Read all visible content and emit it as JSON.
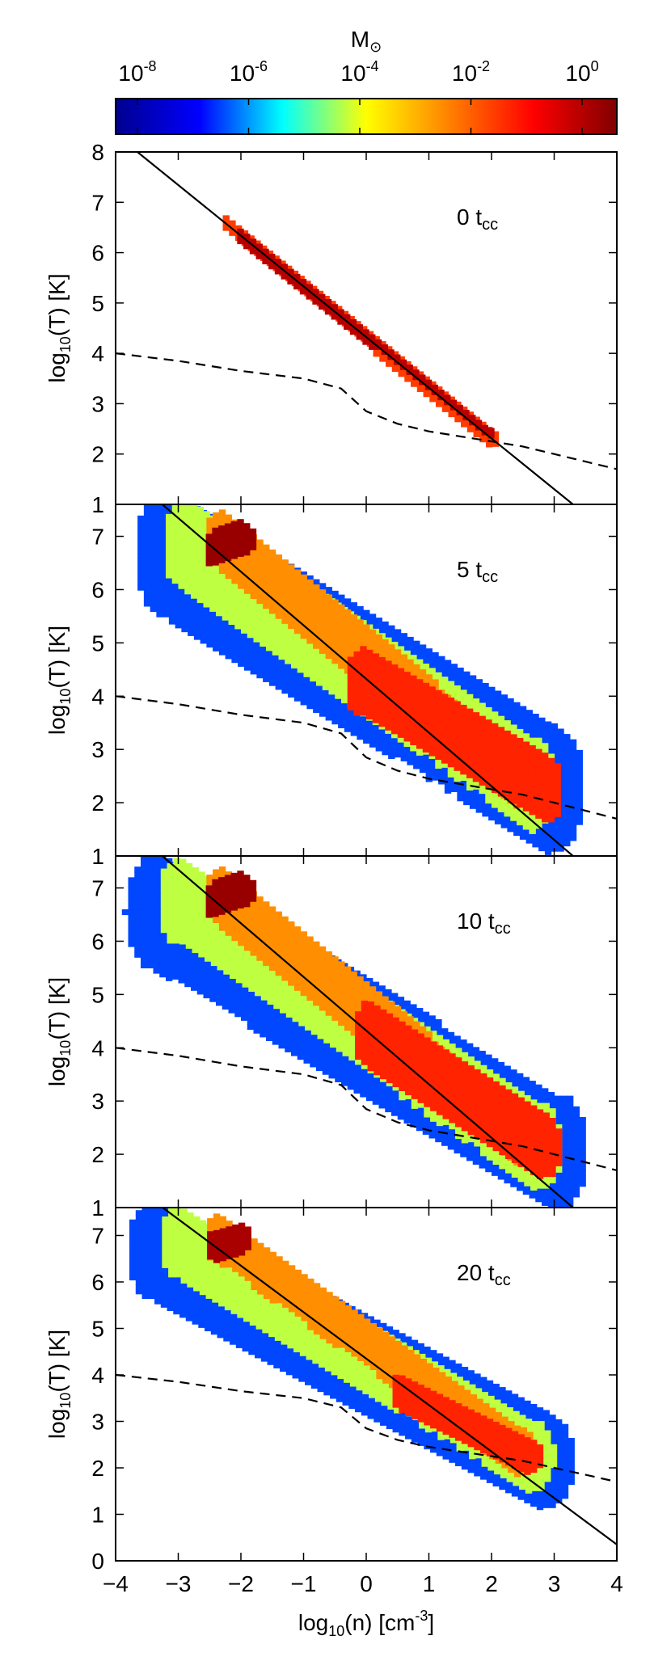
{
  "chart_data": {
    "type": "heatmap",
    "colorbar": {
      "title": "M",
      "title_symbol": "⊙",
      "tick_labels": [
        {
          "base": "10",
          "exp": "-8"
        },
        {
          "base": "10",
          "exp": "-6"
        },
        {
          "base": "10",
          "exp": "-4"
        },
        {
          "base": "10",
          "exp": "-2"
        },
        {
          "base": "10",
          "exp": "0"
        }
      ],
      "log_range": [
        -8.5,
        0.9
      ],
      "colors": [
        "#00008f",
        "#0000ff",
        "#00ffff",
        "#ffff00",
        "#ff8000",
        "#ff0000",
        "#800000"
      ]
    },
    "x_axis": {
      "label_pre": "log",
      "label_sub": "10",
      "label_mid": "(n) [cm",
      "label_sup": "-3",
      "label_post": "]",
      "range": [
        -4,
        4
      ],
      "ticks": [
        -4,
        -3,
        -2,
        -1,
        0,
        1,
        2,
        3,
        4
      ],
      "tick_labels": [
        "−4",
        "−3",
        "−2",
        "−1",
        "0",
        "1",
        "2",
        "3",
        "4"
      ]
    },
    "y_axis_label": {
      "pre": "log",
      "sub": "10",
      "post": "(T) [K]"
    },
    "panels": [
      {
        "label": "0 t",
        "label_sub": "cc",
        "ylim": [
          1,
          8
        ],
        "ytick_labels": [
          "1",
          "2",
          "3",
          "4",
          "5",
          "6",
          "7",
          "8"
        ],
        "cold_curve": [
          [
            -4,
            4.0
          ],
          [
            -3,
            3.85
          ],
          [
            -2,
            3.65
          ],
          [
            -1,
            3.5
          ],
          [
            -0.4,
            3.3
          ],
          [
            0,
            2.85
          ],
          [
            0.5,
            2.6
          ],
          [
            1,
            2.45
          ],
          [
            1.5,
            2.35
          ],
          [
            2,
            2.25
          ],
          [
            2.5,
            2.15
          ],
          [
            3,
            2.0
          ],
          [
            3.5,
            1.85
          ],
          [
            4,
            1.7
          ]
        ],
        "isobar": [
          [
            -4,
            8.35
          ],
          [
            3.3,
            1.0
          ]
        ],
        "blobs": [
          {
            "x": [
              -2.3,
              2.0
            ],
            "y": [
              6.55,
              2.25
            ],
            "width": 0.09,
            "step": 0.2,
            "level": -1.4
          },
          {
            "x": [
              -2.1,
              1.9
            ],
            "y": [
              6.35,
              2.35
            ],
            "width": 0.06,
            "step": 0.2,
            "level": 0.2
          }
        ]
      },
      {
        "label": "5 t",
        "label_sub": "cc",
        "ylim": [
          1,
          7.6
        ],
        "ytick_labels": [
          "1",
          "2",
          "3",
          "4",
          "5",
          "6",
          "7"
        ],
        "cold_curve": [
          [
            -4,
            4.0
          ],
          [
            -3,
            3.85
          ],
          [
            -2,
            3.65
          ],
          [
            -1,
            3.5
          ],
          [
            -0.4,
            3.3
          ],
          [
            0,
            2.85
          ],
          [
            0.5,
            2.6
          ],
          [
            1,
            2.45
          ],
          [
            1.5,
            2.35
          ],
          [
            2,
            2.25
          ],
          [
            2.5,
            2.15
          ],
          [
            3,
            2.0
          ],
          [
            3.5,
            1.85
          ],
          [
            4,
            1.7
          ]
        ],
        "isobar": [
          [
            -4,
            8.35
          ],
          [
            3.3,
            1.0
          ]
        ],
        "blobs": [
          {
            "x": [
              -3.2,
              2.9
            ],
            "y": [
              6.6,
              2.2
            ],
            "width": 0.55,
            "step": 0.1,
            "level": -6.5
          },
          {
            "x": [
              -2.9,
              2.6
            ],
            "y": [
              6.8,
              2.3
            ],
            "width": 0.4,
            "step": 0.1,
            "level": -4.2
          },
          {
            "x": [
              -2.4,
              2.4
            ],
            "y": [
              6.9,
              2.4
            ],
            "width": 0.25,
            "step": 0.1,
            "level": -2.4
          },
          {
            "x": [
              -0.1,
              2.8
            ],
            "y": [
              4.2,
              2.2
            ],
            "width": 0.3,
            "step": 0.1,
            "level": -1.1
          },
          {
            "x": [
              -2.5,
              -2.0
            ],
            "y": [
              6.7,
              6.9
            ],
            "width": 0.16,
            "step": 0.1,
            "level": 0.6
          }
        ]
      },
      {
        "label": "10 t",
        "label_sub": "cc",
        "ylim": [
          1,
          7.6
        ],
        "ytick_labels": [
          "1",
          "2",
          "3",
          "4",
          "5",
          "6",
          "7"
        ],
        "cold_curve": [
          [
            -4,
            4.0
          ],
          [
            -3,
            3.85
          ],
          [
            -2,
            3.65
          ],
          [
            -1,
            3.5
          ],
          [
            -0.4,
            3.3
          ],
          [
            0,
            2.85
          ],
          [
            0.5,
            2.6
          ],
          [
            1,
            2.45
          ],
          [
            1.5,
            2.35
          ],
          [
            2,
            2.25
          ],
          [
            2.5,
            2.15
          ],
          [
            3,
            2.0
          ],
          [
            3.5,
            1.85
          ],
          [
            4,
            1.7
          ]
        ],
        "isobar": [
          [
            -4,
            8.35
          ],
          [
            3.3,
            1.0
          ]
        ],
        "blobs": [
          {
            "x": [
              -3.4,
              3.0
            ],
            "y": [
              6.5,
              2.0
            ],
            "width": 0.5,
            "step": 0.1,
            "level": -6.5
          },
          {
            "x": [
              -3.0,
              2.7
            ],
            "y": [
              6.7,
              2.1
            ],
            "width": 0.38,
            "step": 0.1,
            "level": -4.2
          },
          {
            "x": [
              -2.4,
              2.4
            ],
            "y": [
              6.8,
              2.3
            ],
            "width": 0.25,
            "step": 0.1,
            "level": -2.4
          },
          {
            "x": [
              0.0,
              2.8
            ],
            "y": [
              4.2,
              2.1
            ],
            "width": 0.28,
            "step": 0.1,
            "level": -1.1
          },
          {
            "x": [
              -2.5,
              -2.0
            ],
            "y": [
              6.7,
              6.9
            ],
            "width": 0.16,
            "step": 0.1,
            "level": 0.6
          }
        ]
      },
      {
        "label": "20 t",
        "label_sub": "cc",
        "ylim": [
          0,
          7.6
        ],
        "ytick_labels": [
          "0",
          "1",
          "2",
          "3",
          "4",
          "5",
          "6",
          "7"
        ],
        "cold_curve": [
          [
            -4,
            4.0
          ],
          [
            -3,
            3.85
          ],
          [
            -2,
            3.65
          ],
          [
            -1,
            3.5
          ],
          [
            -0.4,
            3.3
          ],
          [
            0,
            2.85
          ],
          [
            0.5,
            2.6
          ],
          [
            1,
            2.45
          ],
          [
            1.5,
            2.35
          ],
          [
            2,
            2.25
          ],
          [
            2.5,
            2.15
          ],
          [
            3,
            2.0
          ],
          [
            3.5,
            1.85
          ],
          [
            4,
            1.7
          ]
        ],
        "isobar": [
          [
            -4,
            8.35
          ],
          [
            4,
            0.35
          ]
        ],
        "blobs": [
          {
            "x": [
              -3.4,
              2.8
            ],
            "y": [
              6.6,
              2.1
            ],
            "width": 0.48,
            "step": 0.1,
            "level": -6.5
          },
          {
            "x": [
              -3.0,
              2.6
            ],
            "y": [
              6.8,
              2.2
            ],
            "width": 0.36,
            "step": 0.1,
            "level": -4.2
          },
          {
            "x": [
              -2.4,
              2.4
            ],
            "y": [
              6.9,
              2.3
            ],
            "width": 0.24,
            "step": 0.1,
            "level": -2.4
          },
          {
            "x": [
              0.5,
              2.6
            ],
            "y": [
              3.6,
              2.2
            ],
            "width": 0.18,
            "step": 0.1,
            "level": -1.1
          },
          {
            "x": [
              -2.5,
              -2.0
            ],
            "y": [
              6.7,
              6.9
            ],
            "width": 0.14,
            "step": 0.1,
            "level": 0.4
          }
        ]
      }
    ]
  }
}
